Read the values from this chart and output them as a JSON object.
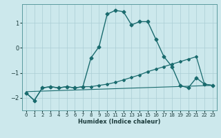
{
  "title": "",
  "xlabel": "Humidex (Indice chaleur)",
  "background_color": "#cce8ec",
  "grid_color": "#aacdd4",
  "line_color": "#1a6b6e",
  "xlim": [
    -0.5,
    23.5
  ],
  "ylim": [
    -2.5,
    1.75
  ],
  "yticks": [
    -2,
    -1,
    0,
    1
  ],
  "xticks": [
    0,
    1,
    2,
    3,
    4,
    5,
    6,
    7,
    8,
    9,
    10,
    11,
    12,
    13,
    14,
    15,
    16,
    17,
    18,
    19,
    20,
    21,
    22,
    23
  ],
  "curve1_x": [
    0,
    1,
    2,
    3,
    4,
    5,
    6,
    7,
    8,
    9,
    10,
    11,
    12,
    13,
    14,
    15,
    16,
    17,
    18,
    19,
    20,
    21,
    22,
    23
  ],
  "curve1_y": [
    -1.8,
    -2.1,
    -1.6,
    -1.55,
    -1.6,
    -1.55,
    -1.6,
    -1.55,
    -0.4,
    0.05,
    1.35,
    1.5,
    1.45,
    0.92,
    1.05,
    1.05,
    0.35,
    -0.35,
    -0.75,
    -1.5,
    -1.6,
    -1.2,
    -1.45,
    -1.5
  ],
  "curve2_x": [
    0,
    1,
    2,
    3,
    4,
    5,
    6,
    7,
    8,
    9,
    10,
    11,
    12,
    13,
    14,
    15,
    16,
    17,
    18,
    19,
    20,
    21,
    22,
    23
  ],
  "curve2_y": [
    -1.8,
    -2.1,
    -1.6,
    -1.55,
    -1.6,
    -1.55,
    -1.6,
    -1.55,
    -1.55,
    -1.5,
    -1.45,
    -1.38,
    -1.28,
    -1.18,
    -1.08,
    -0.95,
    -0.85,
    -0.75,
    -0.65,
    -0.55,
    -0.45,
    -0.35,
    -1.45,
    -1.5
  ],
  "curve3_x": [
    0,
    23
  ],
  "curve3_y": [
    -1.75,
    -1.5
  ]
}
